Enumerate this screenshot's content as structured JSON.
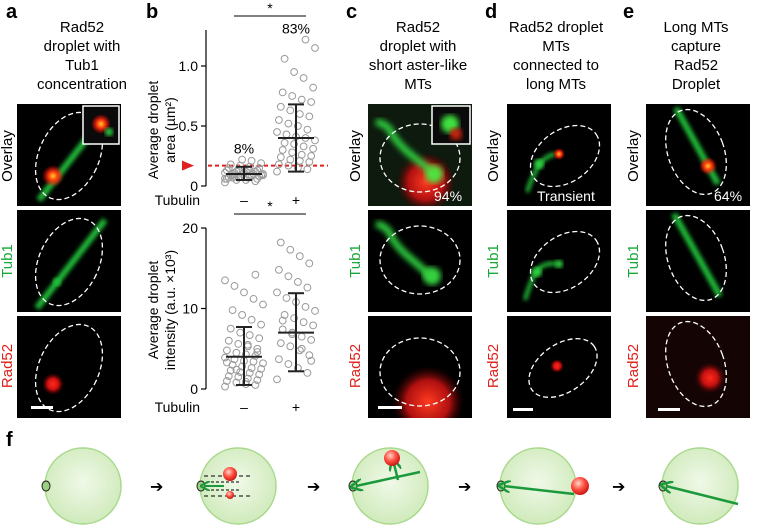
{
  "panels": {
    "a": {
      "letter": "a",
      "title": [
        "Rad52",
        "droplet with",
        "Tub1",
        "concentration"
      ]
    },
    "b": {
      "letter": "b"
    },
    "c": {
      "letter": "c",
      "title": [
        "Rad52",
        "droplet with",
        "short aster-like",
        "MTs"
      ],
      "percent": "94%"
    },
    "d": {
      "letter": "d",
      "title": [
        "Rad52 droplet",
        "MTs",
        "connected to",
        "long MTs"
      ],
      "label": "Transient"
    },
    "e": {
      "letter": "e",
      "title": [
        "Long MTs",
        "capture",
        "Rad52",
        "Droplet"
      ],
      "percent": "64%"
    },
    "f": {
      "letter": "f"
    }
  },
  "row_labels": {
    "overlay": "Overlay",
    "tub1": "Tub1",
    "rad52": "Rad52"
  },
  "colors": {
    "overlay_label": "#000000",
    "tub1_label": "#1aa83a",
    "rad52_label": "#e0201a",
    "microtubule": "#2fd040",
    "droplet": "#ff2a1a",
    "cell_fill": "#d8efc6",
    "cell_edge": "#a9d98c",
    "arrow_green": "#1a9a3c"
  },
  "chart_data": [
    {
      "type": "scatter",
      "ylabel": "Average droplet area (µm²)",
      "xlabel": "Tubulin",
      "categories": [
        "–",
        "+"
      ],
      "yticks": [
        "0",
        "0.5",
        "1.0"
      ],
      "ylim": [
        0,
        1.3
      ],
      "significance": "*",
      "annotations": [
        "8%",
        "83%"
      ],
      "threshold_line": 0.17,
      "series": [
        {
          "mean": 0.1,
          "sd_low": 0.05,
          "sd_high": 0.16,
          "values": [
            0.03,
            0.04,
            0.05,
            0.05,
            0.06,
            0.06,
            0.07,
            0.07,
            0.07,
            0.08,
            0.08,
            0.08,
            0.09,
            0.09,
            0.09,
            0.1,
            0.1,
            0.1,
            0.1,
            0.11,
            0.11,
            0.11,
            0.12,
            0.12,
            0.12,
            0.13,
            0.13,
            0.14,
            0.14,
            0.15,
            0.15,
            0.16,
            0.17,
            0.18,
            0.19,
            0.21,
            0.22,
            0.07,
            0.09,
            0.1,
            0.11,
            0.08,
            0.06
          ]
        },
        {
          "mean": 0.4,
          "sd_low": 0.12,
          "sd_high": 0.68,
          "values": [
            0.12,
            0.14,
            0.15,
            0.17,
            0.18,
            0.2,
            0.21,
            0.22,
            0.24,
            0.25,
            0.26,
            0.28,
            0.3,
            0.31,
            0.33,
            0.35,
            0.36,
            0.38,
            0.4,
            0.41,
            0.43,
            0.45,
            0.47,
            0.5,
            0.52,
            0.55,
            0.58,
            0.6,
            0.63,
            0.66,
            0.7,
            0.72,
            0.75,
            0.78,
            0.82,
            0.9,
            0.95,
            1.06,
            1.15,
            1.22
          ]
        }
      ]
    },
    {
      "type": "scatter",
      "ylabel": "Average droplet intensity (a.u. ×10³)",
      "xlabel": "Tubulin",
      "categories": [
        "–",
        "+"
      ],
      "yticks": [
        "0",
        "10",
        "20"
      ],
      "ylim": [
        0,
        20
      ],
      "significance": "*",
      "series": [
        {
          "mean": 4,
          "sd_low": 0.5,
          "sd_high": 7.7,
          "values": [
            0.3,
            0.5,
            0.6,
            0.8,
            1,
            1.1,
            1.3,
            1.5,
            1.6,
            1.8,
            2,
            2.1,
            2.3,
            2.5,
            2.6,
            2.8,
            3,
            3.2,
            3.4,
            3.5,
            3.7,
            3.9,
            4.1,
            4.3,
            4.5,
            4.8,
            5,
            5.3,
            5.6,
            6,
            6.3,
            6.7,
            7,
            7.5,
            8,
            8.6,
            9.2,
            9.8,
            10.5,
            11.2,
            12,
            12.8,
            13.5,
            14.2,
            0.9,
            2.4,
            3.3,
            4.6,
            5.5
          ]
        },
        {
          "mean": 7,
          "sd_low": 2.2,
          "sd_high": 11.9,
          "values": [
            1.2,
            2,
            2.6,
            3.1,
            3.7,
            4.2,
            4.8,
            5.3,
            5.7,
            6.1,
            6.5,
            7,
            7.4,
            7.9,
            8.3,
            8.8,
            9.2,
            9.7,
            10.2,
            10.8,
            11.3,
            12,
            12.6,
            13.3,
            14,
            14.8,
            15.6,
            16.5,
            17.3,
            18.2,
            3.5,
            5,
            6.8,
            8.5
          ]
        }
      ]
    }
  ],
  "diagram_steps": 5
}
